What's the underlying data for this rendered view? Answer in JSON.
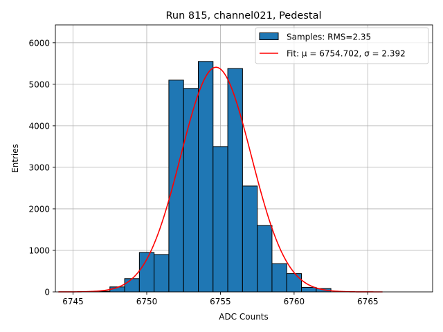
{
  "chart_data": {
    "type": "bar",
    "title": "Run 815, channel021, Pedestal",
    "xlabel": "ADC Counts",
    "ylabel": "Entries",
    "xlim": [
      6743.8,
      6769.4
    ],
    "ylim": [
      0,
      6430
    ],
    "grid": true,
    "legend_position": "top-right",
    "xticks": [
      6745,
      6750,
      6755,
      6760,
      6765
    ],
    "yticks": [
      0,
      1000,
      2000,
      3000,
      4000,
      5000,
      6000
    ],
    "bin_width": 1,
    "bins": [
      {
        "x": 6746,
        "value": 5
      },
      {
        "x": 6747,
        "value": 15
      },
      {
        "x": 6748,
        "value": 120
      },
      {
        "x": 6749,
        "value": 320
      },
      {
        "x": 6750,
        "value": 950
      },
      {
        "x": 6751,
        "value": 900
      },
      {
        "x": 6752,
        "value": 5100
      },
      {
        "x": 6753,
        "value": 4900
      },
      {
        "x": 6754,
        "value": 5550
      },
      {
        "x": 6755,
        "value": 3500
      },
      {
        "x": 6756,
        "value": 5380
      },
      {
        "x": 6757,
        "value": 2550
      },
      {
        "x": 6758,
        "value": 1600
      },
      {
        "x": 6759,
        "value": 680
      },
      {
        "x": 6760,
        "value": 440
      },
      {
        "x": 6761,
        "value": 110
      },
      {
        "x": 6762,
        "value": 80
      }
    ],
    "fit": {
      "mu": 6754.702,
      "sigma": 2.392,
      "amplitude": 5410,
      "x_range": [
        6744,
        6766
      ]
    },
    "series": [
      {
        "name": "Samples: RMS=2.35",
        "kind": "histogram",
        "color": "#1f77b4"
      },
      {
        "name": "Fit: μ = 6754.702, σ = 2.392",
        "kind": "line",
        "color": "#ff0000"
      }
    ]
  }
}
